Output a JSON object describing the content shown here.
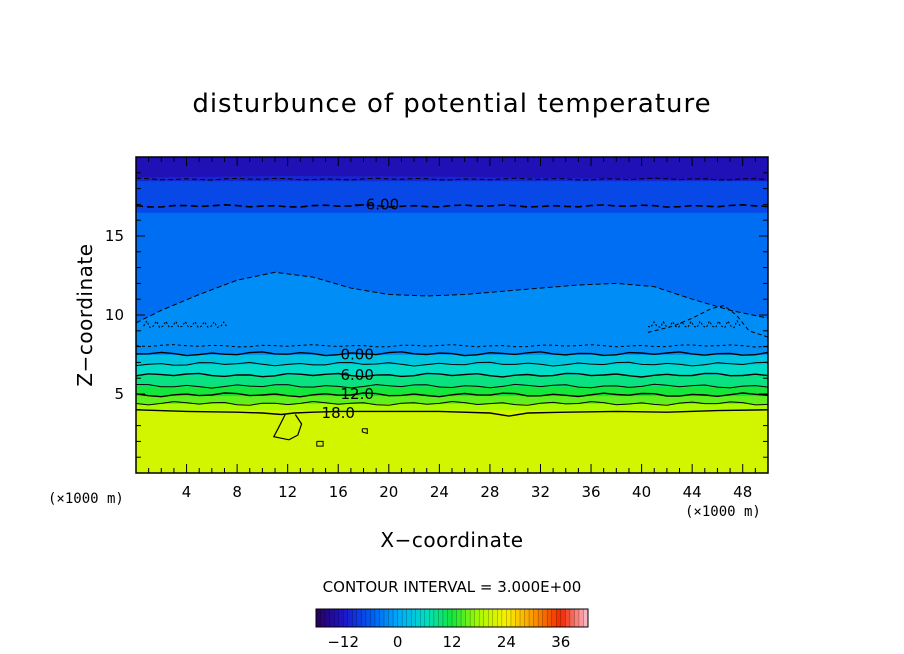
{
  "chart_data": {
    "type": "heatmap",
    "title": "disturbunce of potential temperature",
    "xlabel": "X−coordinate",
    "ylabel": "Z−coordinate",
    "x_unit_left": "(×1000 m)",
    "x_unit_right": "(×1000 m)",
    "xlim": [
      0,
      50
    ],
    "ylim": [
      0,
      20
    ],
    "xticks": [
      4,
      8,
      12,
      16,
      20,
      24,
      28,
      32,
      36,
      40,
      44,
      48
    ],
    "yticks": [
      5,
      10,
      15
    ],
    "contour_interval_text": "CONTOUR INTERVAL = 3.000E+00",
    "contour_labels": [
      {
        "text": "−6.00",
        "x": 19,
        "z": 17.0
      },
      {
        "text": "0.00",
        "x": 17.5,
        "z": 7.5
      },
      {
        "text": "6.00",
        "x": 17.5,
        "z": 6.2
      },
      {
        "text": "12.0",
        "x": 17.5,
        "z": 5.0
      },
      {
        "text": "18.0",
        "x": 16.0,
        "z": 3.8
      }
    ],
    "bands": [
      {
        "z0": 0,
        "z1": 4.0,
        "value": 21
      },
      {
        "z0": 4.0,
        "z1": 4.4,
        "value": 18
      },
      {
        "z0": 4.4,
        "z1": 4.9,
        "value": 15
      },
      {
        "z0": 4.9,
        "z1": 5.5,
        "value": 12
      },
      {
        "z0": 5.5,
        "z1": 6.2,
        "value": 9
      },
      {
        "z0": 6.2,
        "z1": 6.9,
        "value": 6
      },
      {
        "z0": 6.9,
        "z1": 7.5,
        "value": 3
      },
      {
        "z0": 7.5,
        "z1": 9.5,
        "value": -1.5
      },
      {
        "z0": 9.5,
        "z1": 16.5,
        "value": -4.5
      },
      {
        "z0": 16.5,
        "z1": 18.5,
        "value": -7.5
      },
      {
        "z0": 18.5,
        "z1": 20,
        "value": -10.5
      }
    ],
    "colorbar": {
      "min": -18,
      "max": 42,
      "ticks": [
        -12,
        0,
        12,
        24,
        36
      ],
      "tick_labels": [
        "−12",
        "0",
        "12",
        "24",
        "36"
      ]
    }
  }
}
